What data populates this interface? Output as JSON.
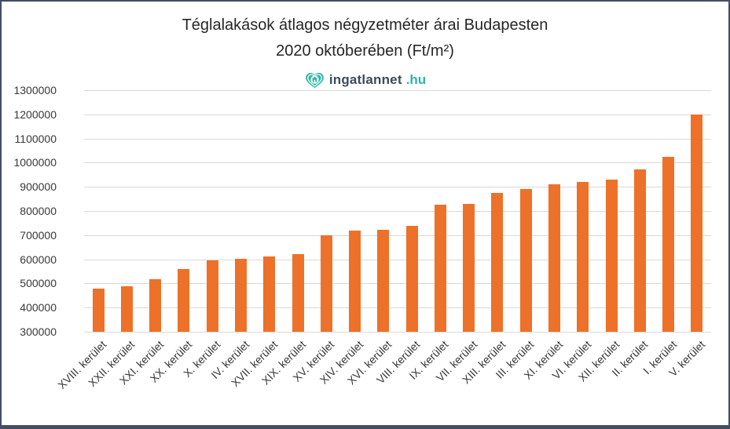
{
  "page": {
    "title_line1": "Téglalakások átlagos négyzetméter árai Budapesten",
    "title_line2": "2020 októberében (Ft/m²)",
    "logo": {
      "icon": "heart-home-icon",
      "text": "ingatlannet",
      "tld": ".hu"
    }
  },
  "colors": {
    "bar": "#ed7128",
    "gridline": "#d9d9d9",
    "title_text": "#262626",
    "axis_text": "#383838",
    "frame_border": "#414e63",
    "logo_teal": "#2eb5a3",
    "logo_dark": "#3d4b5c"
  },
  "chart_data": {
    "type": "bar",
    "title": "Téglalakások átlagos négyzetméter árai Budapesten 2020 októberében (Ft/m²)",
    "categories": [
      "XVIII. kerület",
      "XXII. kerület",
      "XXI. kerület",
      "XX. kerület",
      "X. kerület",
      "IV. kerület",
      "XVII. kerület",
      "XIX. kerület",
      "XV. kerület",
      "XIV. kerület",
      "XVI. kerület",
      "VIII. kerület",
      "IX. kerület",
      "VII. kerület",
      "XIII. kerület",
      "III. kerület",
      "XI. kerület",
      "VI. kerület",
      "XII. kerület",
      "II. kerület",
      "I. kerület",
      "V. kerület"
    ],
    "values": [
      479000,
      487000,
      519000,
      560000,
      597000,
      601000,
      611000,
      621000,
      700000,
      719000,
      723000,
      739000,
      827000,
      830000,
      876000,
      890000,
      911000,
      919000,
      929000,
      972000,
      1024000,
      1200000
    ],
    "yticks": [
      1300000,
      1200000,
      1100000,
      1000000,
      900000,
      800000,
      700000,
      600000,
      500000,
      400000,
      300000
    ],
    "ylim": [
      300000,
      1300000
    ],
    "ytick_step": 100000,
    "xlabel": "",
    "ylabel": "",
    "grid": true,
    "legend": false,
    "bar_color": "#ed7128"
  }
}
